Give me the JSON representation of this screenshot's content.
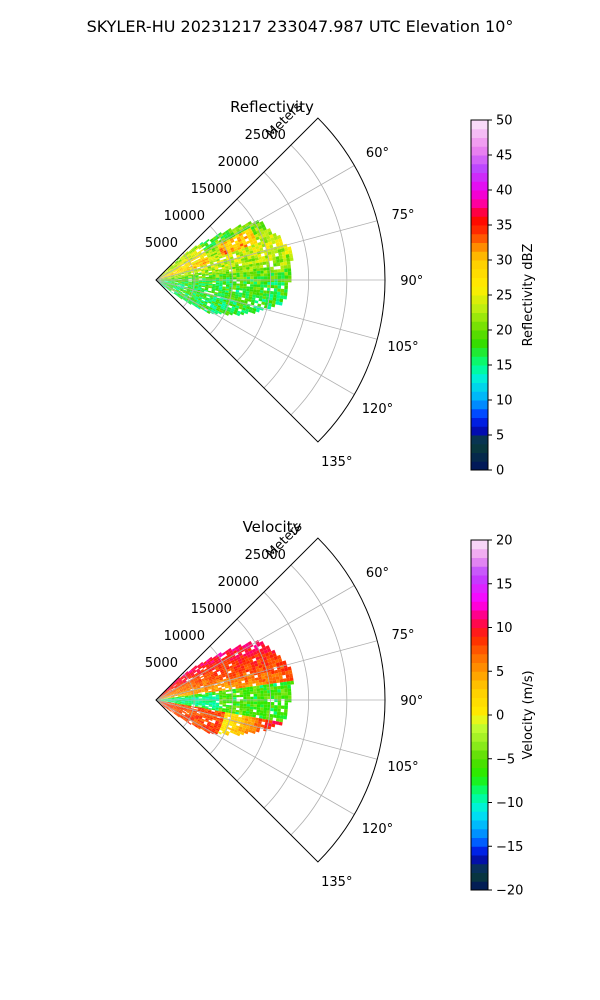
{
  "figure": {
    "title": "SKYLER-HU  20231217  233047.987 UTC Elevation 10°"
  },
  "chart_data": [
    {
      "type": "heatmap",
      "title": "Reflectivity",
      "radial_axis_label": "Meters",
      "radial_ticks": [
        "5000",
        "10000",
        "15000",
        "20000",
        "25000"
      ],
      "angle_ticks": [
        "60°",
        "75°",
        "90°",
        "105°",
        "120°",
        "135°"
      ],
      "angle_range_deg": [
        45,
        135
      ],
      "range_max_m": 30000,
      "grid": true,
      "colorbar": {
        "label": "Reflectivity dBZ",
        "min": 0,
        "max": 50,
        "ticks": [
          "0",
          "5",
          "10",
          "15",
          "20",
          "25",
          "30",
          "35",
          "40",
          "45",
          "50"
        ],
        "levels": 40,
        "colormap": [
          [
            0,
            "#00125e"
          ],
          [
            4,
            "#0a4036"
          ],
          [
            6,
            "#0000cc"
          ],
          [
            8,
            "#0044ff"
          ],
          [
            10,
            "#00aaff"
          ],
          [
            13,
            "#00eedd"
          ],
          [
            15,
            "#00ff88"
          ],
          [
            18,
            "#33dd00"
          ],
          [
            20,
            "#66dd00"
          ],
          [
            23,
            "#bbee11"
          ],
          [
            26,
            "#ffee00"
          ],
          [
            30,
            "#ffcc00"
          ],
          [
            32,
            "#ff8800"
          ],
          [
            34,
            "#ff3300"
          ],
          [
            36,
            "#ff0000"
          ],
          [
            38,
            "#ff0099"
          ],
          [
            40,
            "#ee00ee"
          ],
          [
            43,
            "#bb44ff"
          ],
          [
            46,
            "#ee88ee"
          ],
          [
            50,
            "#fbeafb"
          ]
        ]
      }
    },
    {
      "type": "heatmap",
      "title": "Velocity",
      "radial_axis_label": "Meters",
      "radial_ticks": [
        "5000",
        "10000",
        "15000",
        "20000",
        "25000"
      ],
      "angle_ticks": [
        "60°",
        "75°",
        "90°",
        "105°",
        "120°",
        "135°"
      ],
      "angle_range_deg": [
        45,
        135
      ],
      "range_max_m": 30000,
      "grid": true,
      "colorbar": {
        "label": "Velocity (m/s)",
        "min": -20,
        "max": 20,
        "ticks": [
          "−20",
          "−15",
          "−10",
          "−5",
          "0",
          "5",
          "10",
          "15",
          "20"
        ],
        "levels": 40,
        "colormap": [
          [
            -20,
            "#00125e"
          ],
          [
            -18,
            "#0a4036"
          ],
          [
            -16,
            "#0000cc"
          ],
          [
            -15,
            "#0044ff"
          ],
          [
            -13,
            "#00aaff"
          ],
          [
            -11,
            "#00eeee"
          ],
          [
            -9,
            "#00ff88"
          ],
          [
            -7,
            "#22ee00"
          ],
          [
            -5,
            "#55dd00"
          ],
          [
            -3,
            "#99ee22"
          ],
          [
            -1,
            "#ccff33"
          ],
          [
            0,
            "#ffee00"
          ],
          [
            3,
            "#ffcc00"
          ],
          [
            5,
            "#ff9900"
          ],
          [
            7,
            "#ff6600"
          ],
          [
            9,
            "#ff2200"
          ],
          [
            11,
            "#ff0066"
          ],
          [
            13,
            "#ff00ff"
          ],
          [
            16,
            "#bb44ff"
          ],
          [
            18,
            "#ee99ee"
          ],
          [
            20,
            "#fbeafb"
          ]
        ]
      }
    }
  ]
}
